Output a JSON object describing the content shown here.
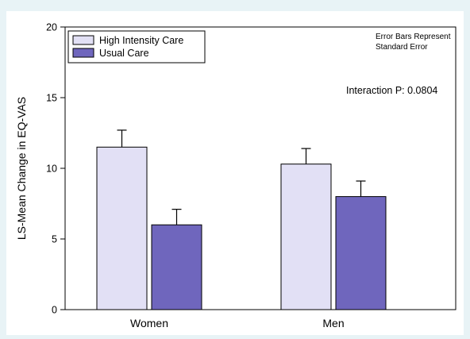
{
  "chart_data": {
    "type": "bar",
    "title": "",
    "xlabel": "",
    "ylabel": "LS-Mean Change in EQ-VAS",
    "categories": [
      "Women",
      "Men"
    ],
    "ylim": [
      0,
      20
    ],
    "yticks": [
      0,
      5,
      10,
      15,
      20
    ],
    "grid": false,
    "legend_position": "top-left",
    "series": [
      {
        "name": "High Intensity Care",
        "color": "#e2e0f5",
        "values": [
          11.5,
          10.3
        ],
        "errors": [
          1.2,
          1.1
        ]
      },
      {
        "name": "Usual Care",
        "color": "#6f66bd",
        "values": [
          6.0,
          8.0
        ],
        "errors": [
          1.1,
          1.1
        ]
      }
    ],
    "annotations": {
      "error_note_line1": "Error Bars Represent",
      "error_note_line2": "Standard Error",
      "interaction": "Interaction P: 0.0804"
    }
  }
}
